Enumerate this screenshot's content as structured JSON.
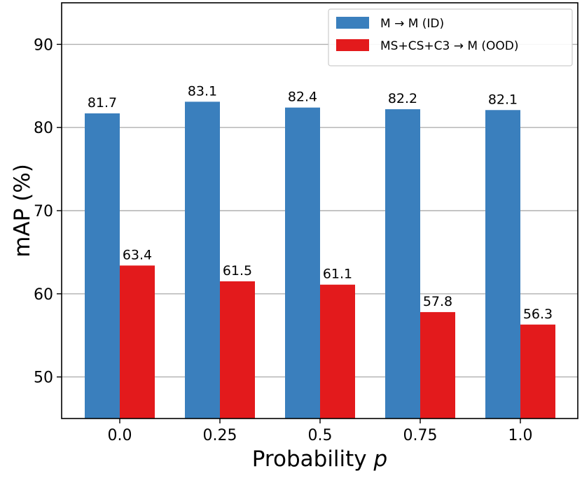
{
  "chart_data": {
    "type": "bar",
    "categories": [
      "0.0",
      "0.25",
      "0.5",
      "0.75",
      "1.0"
    ],
    "series": [
      {
        "name": "M → M (ID)",
        "color": "#3a7fbd",
        "values": [
          81.7,
          83.1,
          82.4,
          82.2,
          82.1
        ]
      },
      {
        "name": "MS+CS+C3 → M (OOD)",
        "color": "#e31a1c",
        "values": [
          63.4,
          61.5,
          61.1,
          57.8,
          56.3
        ]
      }
    ],
    "xlabel": "Probability",
    "xlabel_var": "p",
    "ylabel": "mAP (%)",
    "ylim": [
      45,
      95
    ],
    "yticks": [
      50,
      60,
      70,
      80,
      90
    ],
    "grid": "horizontal",
    "legend_position": "top-right"
  }
}
